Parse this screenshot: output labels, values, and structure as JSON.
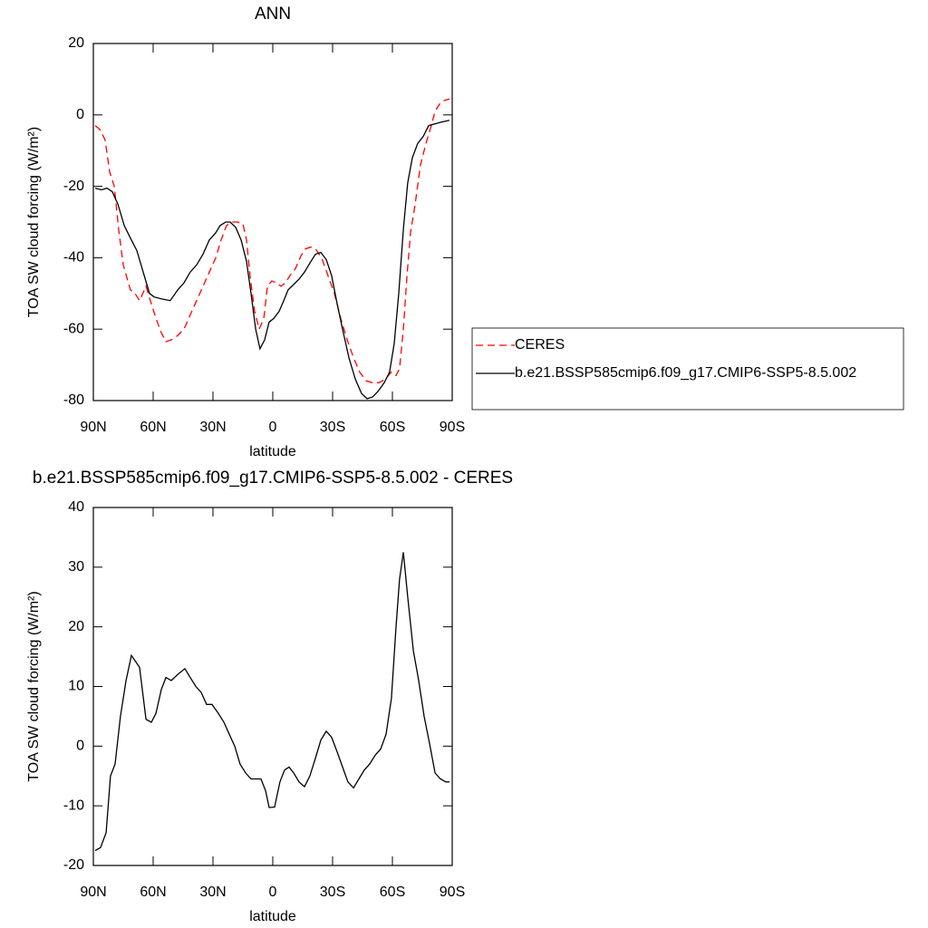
{
  "chart_data": [
    {
      "type": "line",
      "title": "ANN",
      "xlabel": "latitude",
      "ylabel": "TOA SW cloud forcing (W/m²)",
      "xlim": [
        90,
        -90
      ],
      "ylim": [
        -80,
        20
      ],
      "xticks": [
        {
          "value": 90,
          "label": "90N"
        },
        {
          "value": 60,
          "label": "60N"
        },
        {
          "value": 30,
          "label": "30N"
        },
        0,
        {
          "value": -30,
          "label": "30S"
        },
        {
          "value": -60,
          "label": "60S"
        },
        {
          "value": -90,
          "label": "90S"
        }
      ],
      "yticks": [
        -80,
        -60,
        -40,
        -20,
        0,
        20
      ],
      "legend": "right",
      "series": [
        {
          "name": "CERES",
          "color": "#ff0000",
          "linestyle": "dashed",
          "x": [
            89.1,
            86.8,
            84.1,
            81.8,
            79.5,
            77.3,
            75.0,
            71.4,
            69.1,
            66.8,
            63.6,
            61.4,
            58.6,
            55.9,
            53.6,
            50.9,
            48.2,
            44.5,
            41.4,
            38.2,
            35.0,
            31.8,
            28.6,
            25.9,
            23.2,
            20.5,
            17.7,
            15.0,
            13.2,
            11.4,
            9.1,
            6.8,
            4.5,
            2.7,
            0.5,
            -1.8,
            -4.1,
            -6.4,
            -8.6,
            -11.4,
            -14.1,
            -16.4,
            -19.1,
            -21.4,
            -24.5,
            -27.7,
            -30.9,
            -34.1,
            -37.3,
            -40.5,
            -43.6,
            -46.8,
            -50.0,
            -53.2,
            -56.4,
            -59.5,
            -61.8,
            -63.6,
            -65.5,
            -67.3,
            -69.1,
            -71.4,
            -74.1,
            -76.8,
            -79.5,
            -81.4,
            -83.6,
            -85.9,
            -88.6
          ],
          "values": [
            -3,
            -4,
            -7,
            -16,
            -20,
            -32,
            -42,
            -49,
            -50,
            -52,
            -48,
            -52,
            -57,
            -61,
            -63.5,
            -63,
            -62,
            -60,
            -56,
            -52,
            -48,
            -44,
            -40,
            -35,
            -31,
            -30,
            -30,
            -30.5,
            -35,
            -45,
            -55,
            -60,
            -57,
            -48,
            -46.5,
            -47,
            -48,
            -47,
            -45,
            -43,
            -39.5,
            -37.5,
            -37,
            -37.5,
            -40,
            -45,
            -50,
            -57,
            -63,
            -68,
            -72,
            -74.5,
            -75,
            -75,
            -74,
            -72,
            -73,
            -71,
            -60,
            -45,
            -33,
            -25,
            -14,
            -8,
            -3,
            1,
            3,
            4,
            4.5
          ]
        },
        {
          "name": "b.e21.BSSP585cmip6.f09_g17.CMIP6-SSP5-8.5.002",
          "color": "#000000",
          "linestyle": "solid",
          "x": [
            89.1,
            85.9,
            83.2,
            80.5,
            77.7,
            74.5,
            71.4,
            68.2,
            65.0,
            61.8,
            59.5,
            55.9,
            51.4,
            47.7,
            44.5,
            41.4,
            38.2,
            35.0,
            31.8,
            28.6,
            26.4,
            23.6,
            21.4,
            18.6,
            15.9,
            13.2,
            10.9,
            8.6,
            6.4,
            4.1,
            1.8,
            -0.5,
            -3.2,
            -5.5,
            -7.7,
            -10.5,
            -13.2,
            -15.9,
            -18.6,
            -21.4,
            -24.1,
            -26.8,
            -29.5,
            -32.3,
            -35.0,
            -38.2,
            -41.4,
            -44.5,
            -47.3,
            -50.0,
            -52.7,
            -55.9,
            -58.6,
            -60.9,
            -63.2,
            -65.5,
            -67.7,
            -70.0,
            -72.7,
            -75.5,
            -78.2,
            -81.4,
            -84.5,
            -88.6
          ],
          "values": [
            -20.5,
            -21,
            -20.5,
            -21.5,
            -25,
            -31,
            -34.5,
            -38,
            -44,
            -50,
            -51,
            -51.5,
            -52,
            -49,
            -47,
            -44,
            -42,
            -39,
            -35,
            -33,
            -31,
            -30,
            -30,
            -31.5,
            -35,
            -41,
            -50,
            -60,
            -65.5,
            -63,
            -58,
            -57,
            -55,
            -52,
            -49,
            -47.5,
            -46,
            -44,
            -41.5,
            -39,
            -38.5,
            -40.5,
            -45,
            -53,
            -60,
            -68,
            -74,
            -78,
            -79.5,
            -79,
            -77.5,
            -75,
            -72,
            -64,
            -50,
            -32,
            -19,
            -12,
            -8,
            -6,
            -3,
            -2.5,
            -2,
            -1.5
          ]
        }
      ]
    },
    {
      "type": "line",
      "title": "b.e21.BSSP585cmip6.f09_g17.CMIP6-SSP5-8.5.002 - CERES",
      "xlabel": "latitude",
      "ylabel": "TOA SW cloud forcing (W/m²)",
      "xlim": [
        90,
        -90
      ],
      "ylim": [
        -20,
        40
      ],
      "xticks": [
        {
          "value": 90,
          "label": "90N"
        },
        {
          "value": 60,
          "label": "60N"
        },
        {
          "value": 30,
          "label": "30N"
        },
        0,
        {
          "value": -30,
          "label": "30S"
        },
        {
          "value": -60,
          "label": "60S"
        },
        {
          "value": -90,
          "label": "90S"
        }
      ],
      "yticks": [
        -20,
        -10,
        0,
        10,
        20,
        30,
        40
      ],
      "series": [
        {
          "color": "#000000",
          "linestyle": "solid",
          "x": [
            89.1,
            86.4,
            83.6,
            81.4,
            79.1,
            76.4,
            73.6,
            70.9,
            66.8,
            63.6,
            60.9,
            58.6,
            55.9,
            53.6,
            50.9,
            47.7,
            44.1,
            41.4,
            38.6,
            35.9,
            33.2,
            30.5,
            27.3,
            24.5,
            21.8,
            19.1,
            16.4,
            13.6,
            10.9,
            8.6,
            5.9,
            3.6,
            1.8,
            -0.9,
            -3.6,
            -5.9,
            -8.2,
            -10.5,
            -13.2,
            -15.9,
            -18.6,
            -21.4,
            -24.1,
            -26.8,
            -29.5,
            -32.3,
            -35.0,
            -37.7,
            -40.5,
            -43.2,
            -45.9,
            -48.6,
            -51.4,
            -54.1,
            -56.8,
            -59.5,
            -61.8,
            -63.6,
            -65.5,
            -67.7,
            -70.5,
            -73.2,
            -75.9,
            -78.6,
            -81.4,
            -84.1,
            -86.8,
            -88.6
          ],
          "values": [
            -17.5,
            -17,
            -14.5,
            -5,
            -3,
            5,
            11,
            15.2,
            13.2,
            4.5,
            4,
            5.5,
            9.5,
            11.5,
            11,
            12,
            13,
            11.5,
            10,
            9,
            7,
            7,
            5.5,
            4,
            2,
            0,
            -3,
            -4.5,
            -5.5,
            -5.5,
            -5.5,
            -7.5,
            -10.3,
            -10.2,
            -6,
            -4,
            -3.5,
            -4.5,
            -6,
            -6.8,
            -5,
            -2,
            1,
            2.5,
            1.5,
            -1,
            -3.5,
            -6,
            -7,
            -5.5,
            -4,
            -3,
            -1.5,
            -0.5,
            2,
            8,
            20,
            28,
            32.5,
            25,
            16,
            11,
            5,
            0.5,
            -4.5,
            -5.5,
            -6,
            -6
          ]
        }
      ]
    }
  ]
}
